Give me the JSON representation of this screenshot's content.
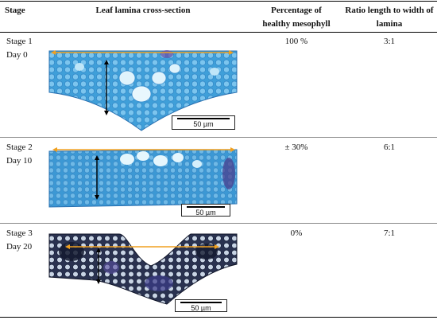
{
  "table": {
    "headers": {
      "stage": "Stage",
      "section": "Leaf lamina cross-section",
      "mesophyll_line1": "Percentage of",
      "mesophyll_line2": "healthy mesophyll",
      "ratio_line1": "Ratio length to width of",
      "ratio_line2": "lamina"
    },
    "rows": [
      {
        "stage": "Stage 1",
        "day": "Day 0",
        "mesophyll": "100 %",
        "ratio": "3:1",
        "scale_label": "50 µm"
      },
      {
        "stage": "Stage 2",
        "day": "Day 10",
        "mesophyll": "± 30%",
        "ratio": "6:1",
        "scale_label": "50 µm"
      },
      {
        "stage": "Stage 3",
        "day": "Day 20",
        "mesophyll": "0%",
        "ratio": "7:1",
        "scale_label": "50 µm"
      }
    ]
  },
  "colors": {
    "tissue_blue": "#3f9fd9",
    "tissue_light": "#a9dcf5",
    "necrotic_dark": "#1a2038",
    "length_arrow": "#f0a020",
    "width_arrow": "#000000"
  }
}
